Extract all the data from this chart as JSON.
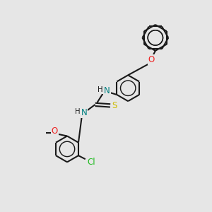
{
  "bg": "#e6e6e6",
  "bond_color": "#1a1a1a",
  "lw": 1.5,
  "atom_colors": {
    "N": "#008080",
    "O": "#ee2222",
    "S": "#ccbb00",
    "Cl": "#22bb22",
    "H": "#1a1a1a"
  },
  "fs": 8.5,
  "fss": 7.2,
  "R": 0.62
}
